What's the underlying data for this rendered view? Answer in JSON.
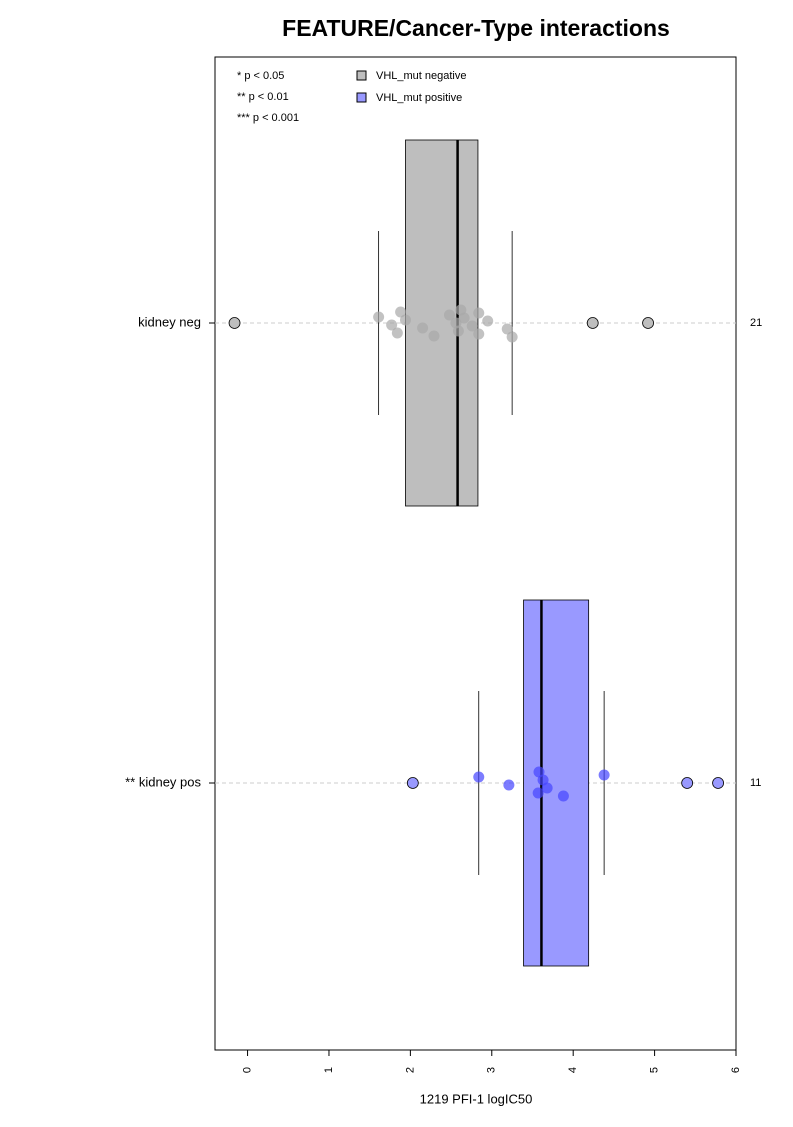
{
  "chart_data": {
    "type": "box",
    "title": "FEATURE/Cancer-Type interactions",
    "xlabel": "1219 PFI-1 logIC50",
    "xlim": [
      -0.4,
      6.0
    ],
    "xticks": [
      0,
      1,
      2,
      3,
      4,
      5,
      6
    ],
    "notes": [
      "* p < 0.05",
      "** p < 0.01",
      "*** p < 0.001"
    ],
    "series": [
      {
        "name": "VHL_mut negative",
        "category": "kidney neg",
        "n": 21,
        "color": "#bebebe",
        "point_color": "#a8a8a8",
        "whisker_low": 1.61,
        "q1": 1.94,
        "median": 2.58,
        "q3": 2.83,
        "whisker_high": 3.25,
        "points": [
          -0.16,
          1.61,
          1.77,
          1.84,
          1.88,
          1.94,
          2.15,
          2.29,
          2.48,
          2.56,
          2.59,
          2.62,
          2.66,
          2.76,
          2.84,
          2.84,
          2.95,
          3.19,
          3.25,
          4.24,
          4.92
        ]
      },
      {
        "name": "VHL_mut positive",
        "category": "** kidney pos",
        "n": 11,
        "color": "#9999ff",
        "point_color": "#4444ff",
        "whisker_low": 2.84,
        "q1": 3.39,
        "median": 3.61,
        "q3": 4.19,
        "whisker_high": 4.38,
        "points": [
          2.03,
          2.84,
          3.21,
          3.57,
          3.58,
          3.63,
          3.68,
          3.88,
          4.38,
          5.4,
          5.78
        ]
      }
    ]
  }
}
